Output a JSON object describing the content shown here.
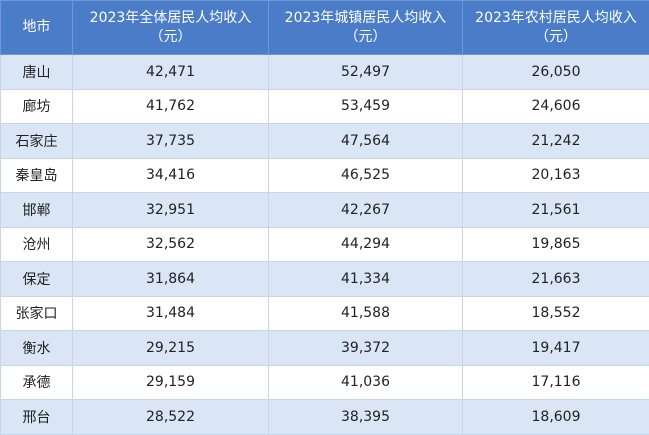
{
  "table": {
    "header": [
      "地市",
      "2023年全体居民人均收入\n（元）",
      "2023年城镇居民人均收入\n（元）",
      "2023年农村居民人均收入\n（元）"
    ],
    "rows": [
      [
        "唐山",
        "42,471",
        "52,497",
        "26,050"
      ],
      [
        "廊坊",
        "41,762",
        "53,459",
        "24,606"
      ],
      [
        "石家庄",
        "37,735",
        "47,564",
        "21,242"
      ],
      [
        "秦皇岛",
        "34,416",
        "46,525",
        "20,163"
      ],
      [
        "邯郸",
        "32,951",
        "42,267",
        "21,561"
      ],
      [
        "沧州",
        "32,562",
        "44,294",
        "19,865"
      ],
      [
        "保定",
        "31,864",
        "41,334",
        "21,663"
      ],
      [
        "张家口",
        "31,484",
        "41,588",
        "18,552"
      ],
      [
        "衡水",
        "29,215",
        "39,372",
        "19,417"
      ],
      [
        "承德",
        "29,159",
        "41,036",
        "17,116"
      ],
      [
        "邢台",
        "28,522",
        "38,395",
        "18,609"
      ]
    ]
  }
}
